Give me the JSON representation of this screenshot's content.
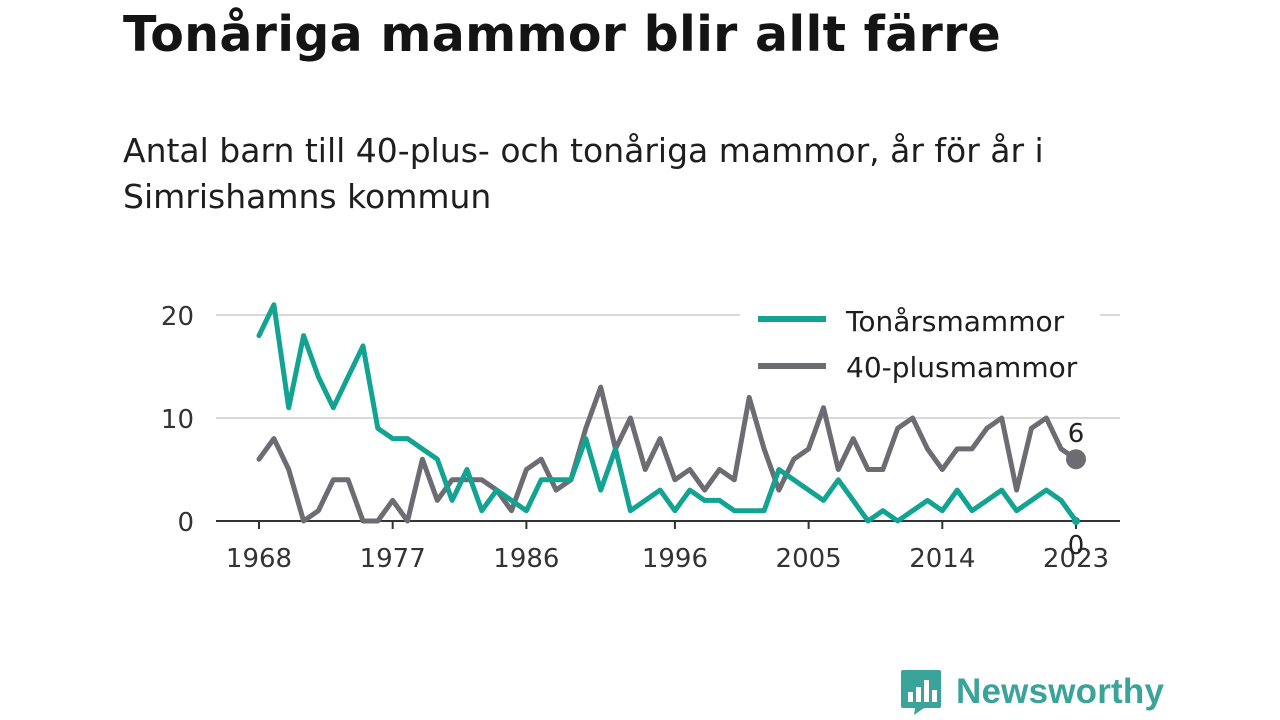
{
  "title": "Tonåriga mammor blir allt färre",
  "subtitle": "Antal barn till 40-plus- och tonåriga mammor, år för år i Simrishamns kommun",
  "brand": {
    "name": "Newsworthy",
    "icon": "bar-chart-speech-bubble-icon",
    "color": "#3aa39a"
  },
  "chart_data": {
    "type": "line",
    "xlabel": "",
    "ylabel": "",
    "xlim": [
      1968,
      2023
    ],
    "ylim": [
      0,
      22
    ],
    "x_ticks": [
      "1968",
      "1977",
      "1986",
      "1996",
      "2005",
      "2014",
      "2023"
    ],
    "y_ticks": [
      "0",
      "10",
      "20"
    ],
    "grid": "horizontal",
    "legend_position": "top-right",
    "x": [
      1968,
      1969,
      1970,
      1971,
      1972,
      1973,
      1974,
      1975,
      1976,
      1977,
      1978,
      1979,
      1980,
      1981,
      1982,
      1983,
      1984,
      1985,
      1986,
      1987,
      1988,
      1989,
      1990,
      1991,
      1992,
      1993,
      1994,
      1995,
      1996,
      1997,
      1998,
      1999,
      2000,
      2001,
      2002,
      2003,
      2004,
      2005,
      2006,
      2007,
      2008,
      2009,
      2010,
      2011,
      2012,
      2013,
      2014,
      2015,
      2016,
      2017,
      2018,
      2019,
      2020,
      2021,
      2022,
      2023
    ],
    "series": [
      {
        "name": "Tonårsmammor",
        "color": "#12a392",
        "end_label": "0",
        "values": [
          18,
          21,
          11,
          18,
          14,
          11,
          14,
          17,
          9,
          8,
          8,
          7,
          6,
          2,
          5,
          1,
          3,
          2,
          1,
          4,
          4,
          4,
          8,
          3,
          7,
          1,
          2,
          3,
          1,
          3,
          2,
          2,
          1,
          1,
          1,
          5,
          4,
          3,
          2,
          4,
          2,
          0,
          1,
          0,
          1,
          2,
          1,
          3,
          1,
          2,
          3,
          1,
          2,
          3,
          2,
          0
        ]
      },
      {
        "name": "40-plusmammor",
        "color": "#6d6c73",
        "end_label": "6",
        "values": [
          6,
          8,
          5,
          0,
          1,
          4,
          4,
          0,
          0,
          2,
          0,
          6,
          2,
          4,
          4,
          4,
          3,
          1,
          5,
          6,
          3,
          4,
          9,
          13,
          7,
          10,
          5,
          8,
          4,
          5,
          3,
          5,
          4,
          12,
          7,
          3,
          6,
          7,
          11,
          5,
          8,
          5,
          5,
          9,
          10,
          7,
          5,
          7,
          7,
          9,
          10,
          3,
          9,
          10,
          7,
          6
        ]
      }
    ]
  }
}
